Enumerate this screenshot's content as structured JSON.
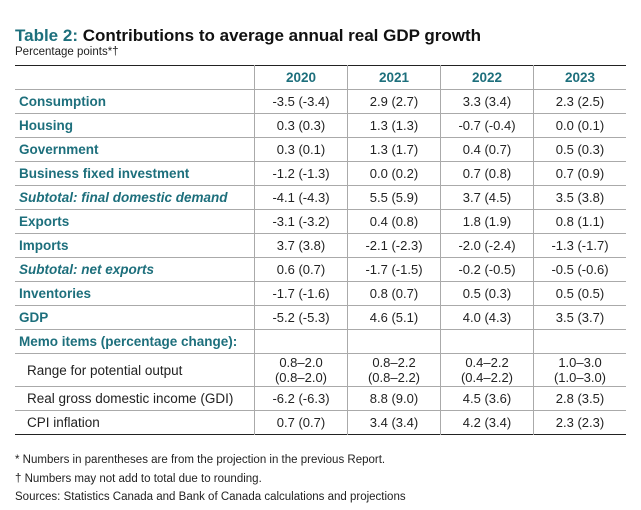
{
  "title": {
    "prefix": "Table 2:",
    "text": "Contributions to average annual real GDP growth"
  },
  "subtitle": "Percentage points*†",
  "columns": [
    "2020",
    "2021",
    "2022",
    "2023"
  ],
  "rows": [
    {
      "label": "Consumption",
      "style": "bold",
      "values": [
        "-3.5 (-3.4)",
        "2.9 (2.7)",
        "3.3 (3.4)",
        "2.3 (2.5)"
      ]
    },
    {
      "label": "Housing",
      "style": "bold",
      "values": [
        "0.3 (0.3)",
        "1.3 (1.3)",
        "-0.7 (-0.4)",
        "0.0 (0.1)"
      ]
    },
    {
      "label": "Government",
      "style": "bold",
      "values": [
        "0.3 (0.1)",
        "1.3 (1.7)",
        "0.4 (0.7)",
        "0.5 (0.3)"
      ]
    },
    {
      "label": "Business fixed investment",
      "style": "bold",
      "values": [
        "-1.2 (-1.3)",
        "0.0 (0.2)",
        "0.7 (0.8)",
        "0.7 (0.9)"
      ]
    },
    {
      "label": "Subtotal: final domestic demand",
      "style": "italic",
      "values": [
        "-4.1 (-4.3)",
        "5.5 (5.9)",
        "3.7 (4.5)",
        "3.5 (3.8)"
      ]
    },
    {
      "label": "Exports",
      "style": "bold",
      "values": [
        "-3.1 (-3.2)",
        "0.4 (0.8)",
        "1.8 (1.9)",
        "0.8 (1.1)"
      ]
    },
    {
      "label": "Imports",
      "style": "bold",
      "values": [
        "3.7 (3.8)",
        "-2.1 (-2.3)",
        "-2.0 (-2.4)",
        "-1.3 (-1.7)"
      ]
    },
    {
      "label": "Subtotal: net exports",
      "style": "italic",
      "values": [
        "0.6 (0.7)",
        "-1.7 (-1.5)",
        "-0.2 (-0.5)",
        "-0.5 (-0.6)"
      ]
    },
    {
      "label": "Inventories",
      "style": "bold",
      "values": [
        "-1.7 (-1.6)",
        "0.8 (0.7)",
        "0.5 (0.3)",
        "0.5 (0.5)"
      ]
    },
    {
      "label": "GDP",
      "style": "bold",
      "values": [
        "-5.2 (-5.3)",
        "4.6 (5.1)",
        "4.0 (4.3)",
        "3.5 (3.7)"
      ]
    },
    {
      "label": "Memo items (percentage change):",
      "style": "bold",
      "values": [
        "",
        "",
        "",
        ""
      ]
    },
    {
      "label": "Range for potential output",
      "style": "memo",
      "values": [
        "0.8–2.0\n(0.8–2.0)",
        "0.8–2.2\n(0.8–2.2)",
        "0.4–2.2\n(0.4–2.2)",
        "1.0–3.0\n(1.0–3.0)"
      ]
    },
    {
      "label": "Real gross domestic income (GDI)",
      "style": "memo",
      "values": [
        "-6.2 (-6.3)",
        "8.8 (9.0)",
        "4.5 (3.6)",
        "2.8 (3.5)"
      ]
    },
    {
      "label": "CPI inflation",
      "style": "memo",
      "values": [
        "0.7 (0.7)",
        "3.4 (3.4)",
        "4.2 (3.4)",
        "2.3 (2.3)"
      ]
    }
  ],
  "notes": [
    "*  Numbers in parentheses are from the projection in the previous Report.",
    "†  Numbers may not add to total due to rounding.",
    "Sources: Statistics Canada and Bank of Canada calculations and projections"
  ],
  "colors": {
    "accent": "#1d6f7c"
  }
}
